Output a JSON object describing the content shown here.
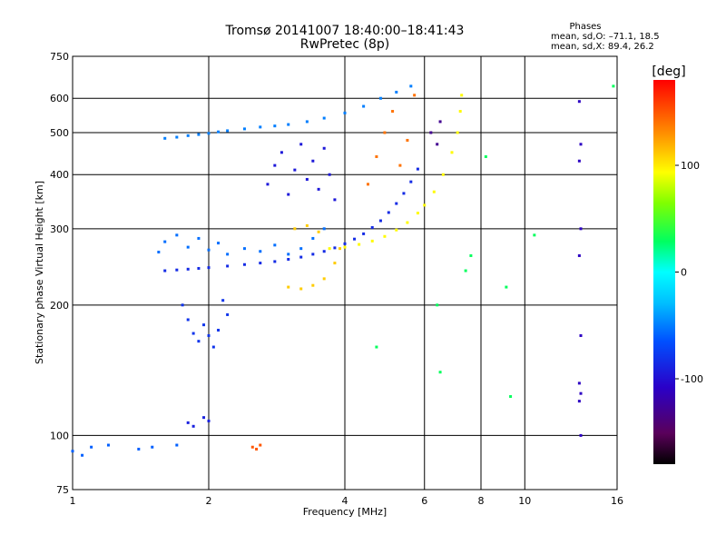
{
  "chart_data": {
    "type": "scatter",
    "title": "Tromsø 20141007 18:40:00–18:41:43",
    "subtitle": "RwPretec (8p)",
    "phases_title": "Phases",
    "phases_lines": [
      "mean, sd,O: –71.1, 18.5",
      "mean, sd,X: 89.4, 26.2"
    ],
    "xlabel": "Frequency [MHz]",
    "ylabel": "Stationary phase Virtual Height [km]",
    "x_scale": "log",
    "y_scale": "log",
    "xlim": [
      1,
      16
    ],
    "ylim": [
      75,
      750
    ],
    "x_ticks": [
      1,
      2,
      4,
      6,
      8,
      10,
      16
    ],
    "y_ticks": [
      75,
      100,
      200,
      300,
      400,
      500,
      600,
      750
    ],
    "grid": true,
    "colorbar": {
      "label": "[deg]",
      "range": [
        -180,
        180
      ],
      "ticks": [
        100,
        0,
        -100
      ]
    },
    "series": [
      {
        "values": [
          [
            1.6,
            240
          ],
          [
            1.7,
            241
          ],
          [
            1.8,
            242
          ],
          [
            1.9,
            243
          ],
          [
            2.0,
            244
          ],
          [
            2.2,
            246
          ],
          [
            2.4,
            248
          ],
          [
            2.6,
            250
          ],
          [
            2.8,
            252
          ],
          [
            3.0,
            255
          ],
          [
            3.2,
            258
          ],
          [
            3.4,
            262
          ],
          [
            3.6,
            266
          ],
          [
            3.8,
            271
          ],
          [
            4.0,
            277
          ],
          [
            4.2,
            284
          ],
          [
            4.4,
            292
          ],
          [
            4.6,
            302
          ],
          [
            4.8,
            313
          ],
          [
            5.0,
            327
          ],
          [
            5.2,
            343
          ],
          [
            5.4,
            362
          ],
          [
            5.6,
            385
          ],
          [
            5.8,
            412
          ]
        ],
        "phase": -85
      },
      {
        "values": [
          [
            3.7,
            270
          ],
          [
            4.0,
            272
          ],
          [
            4.3,
            276
          ],
          [
            4.6,
            281
          ],
          [
            4.9,
            288
          ],
          [
            5.2,
            298
          ],
          [
            5.5,
            310
          ],
          [
            5.8,
            326
          ],
          [
            6.0,
            340
          ],
          [
            6.3,
            365
          ],
          [
            6.6,
            400
          ],
          [
            6.9,
            450
          ],
          [
            7.1,
            500
          ],
          [
            7.2,
            560
          ],
          [
            7.25,
            610
          ]
        ],
        "phase": 95
      },
      {
        "values": [
          [
            1.55,
            265
          ],
          [
            1.6,
            280
          ],
          [
            1.7,
            290
          ],
          [
            1.8,
            272
          ],
          [
            1.9,
            285
          ],
          [
            2.0,
            268
          ],
          [
            2.1,
            278
          ],
          [
            2.2,
            262
          ],
          [
            2.4,
            270
          ],
          [
            2.6,
            266
          ],
          [
            2.8,
            275
          ],
          [
            3.0,
            262
          ],
          [
            3.2,
            270
          ],
          [
            3.4,
            285
          ],
          [
            3.6,
            300
          ]
        ],
        "phase": -55
      },
      {
        "values": [
          [
            1.6,
            485
          ],
          [
            1.7,
            488
          ],
          [
            1.8,
            492
          ],
          [
            1.9,
            495
          ],
          [
            2.0,
            498
          ],
          [
            2.1,
            502
          ],
          [
            2.2,
            505
          ],
          [
            2.4,
            510
          ],
          [
            2.6,
            515
          ],
          [
            2.8,
            518
          ],
          [
            3.0,
            522
          ],
          [
            3.3,
            530
          ],
          [
            3.6,
            540
          ],
          [
            4.0,
            555
          ],
          [
            4.4,
            575
          ],
          [
            4.8,
            600
          ],
          [
            5.2,
            620
          ],
          [
            5.6,
            640
          ]
        ],
        "phase": -50
      },
      {
        "values": [
          [
            1.75,
            200
          ],
          [
            1.8,
            185
          ],
          [
            1.85,
            172
          ],
          [
            1.9,
            165
          ],
          [
            1.95,
            180
          ],
          [
            2.0,
            170
          ],
          [
            2.05,
            160
          ],
          [
            2.1,
            175
          ],
          [
            2.15,
            205
          ],
          [
            2.2,
            190
          ]
        ],
        "phase": -80
      },
      {
        "values": [
          [
            3.0,
            220
          ],
          [
            3.2,
            218
          ],
          [
            3.4,
            222
          ],
          [
            3.6,
            230
          ],
          [
            3.8,
            250
          ],
          [
            3.9,
            270
          ],
          [
            3.1,
            300
          ],
          [
            3.3,
            305
          ],
          [
            3.5,
            295
          ]
        ],
        "phase": 110
      },
      {
        "values": [
          [
            2.7,
            380
          ],
          [
            2.8,
            420
          ],
          [
            2.9,
            450
          ],
          [
            3.0,
            360
          ],
          [
            3.1,
            410
          ],
          [
            3.2,
            470
          ],
          [
            3.3,
            390
          ],
          [
            3.4,
            430
          ],
          [
            3.5,
            370
          ],
          [
            3.6,
            460
          ],
          [
            3.7,
            400
          ],
          [
            3.8,
            350
          ]
        ],
        "phase": -95
      },
      {
        "values": [
          [
            4.5,
            380
          ],
          [
            4.7,
            440
          ],
          [
            4.9,
            500
          ],
          [
            5.1,
            560
          ],
          [
            5.3,
            420
          ],
          [
            5.5,
            480
          ],
          [
            5.7,
            610
          ]
        ],
        "phase": 140
      },
      {
        "values": [
          [
            6.2,
            500
          ],
          [
            6.4,
            470
          ],
          [
            6.5,
            530
          ]
        ],
        "phase": -130
      },
      {
        "values": [
          [
            1.8,
            107
          ],
          [
            1.85,
            105
          ],
          [
            1.95,
            110
          ],
          [
            2.0,
            108
          ]
        ],
        "phase": -90
      },
      {
        "values": [
          [
            2.5,
            94
          ],
          [
            2.55,
            93
          ],
          [
            2.6,
            95
          ]
        ],
        "phase": 150
      },
      {
        "values": [
          [
            1.0,
            92
          ],
          [
            1.05,
            90
          ],
          [
            1.1,
            94
          ],
          [
            1.2,
            95
          ],
          [
            1.4,
            93
          ],
          [
            1.5,
            94
          ],
          [
            1.7,
            95
          ]
        ],
        "phase": -60
      },
      {
        "values": [
          [
            13.2,
            590
          ],
          [
            13.3,
            470
          ],
          [
            13.2,
            430
          ],
          [
            13.3,
            300
          ],
          [
            13.2,
            260
          ],
          [
            13.3,
            170
          ],
          [
            13.2,
            132
          ],
          [
            13.3,
            125
          ],
          [
            13.2,
            120
          ],
          [
            13.3,
            100
          ]
        ],
        "phase": -110
      },
      {
        "values": [
          [
            8.2,
            440
          ],
          [
            9.1,
            220
          ],
          [
            10.5,
            290
          ],
          [
            9.3,
            123
          ],
          [
            7.4,
            240
          ],
          [
            7.6,
            260
          ],
          [
            6.5,
            140
          ],
          [
            6.4,
            200
          ],
          [
            4.7,
            160
          ],
          [
            15.7,
            640
          ]
        ],
        "phase": 30
      }
    ]
  }
}
